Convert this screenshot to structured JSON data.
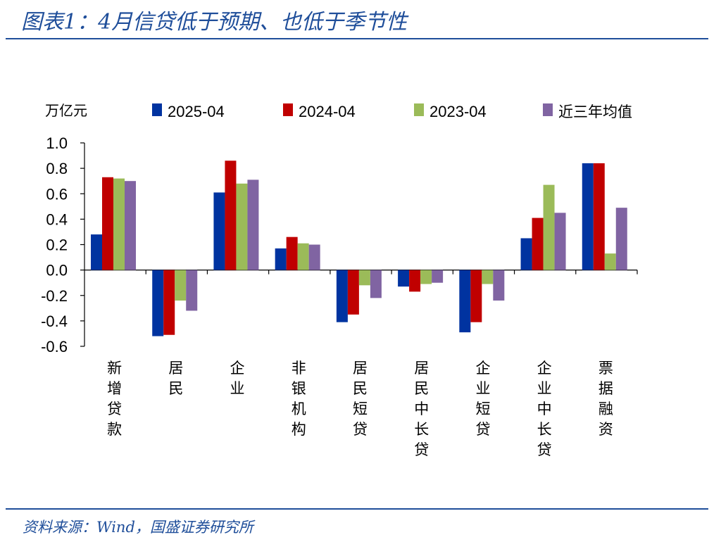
{
  "header": {
    "title": "图表1：4月信贷低于预期、也低于季节性"
  },
  "footer": {
    "source": "资料来源：Wind，国盛证券研究所"
  },
  "chart_data": {
    "type": "bar",
    "unit_label": "万亿元",
    "categories": [
      "新增贷款",
      "居民",
      "企业",
      "非银机构",
      "居民短贷",
      "居民中长贷",
      "企业短贷",
      "企业中长贷",
      "票据融资"
    ],
    "series": [
      {
        "name": "2025-04",
        "color": "#0033a0",
        "values": [
          0.28,
          -0.52,
          0.61,
          0.17,
          -0.41,
          -0.13,
          -0.49,
          0.25,
          0.84
        ]
      },
      {
        "name": "2024-04",
        "color": "#c00000",
        "values": [
          0.73,
          -0.51,
          0.86,
          0.26,
          -0.35,
          -0.17,
          -0.41,
          0.41,
          0.84
        ]
      },
      {
        "name": "2023-04",
        "color": "#9bbb59",
        "values": [
          0.72,
          -0.24,
          0.68,
          0.21,
          -0.12,
          -0.11,
          -0.11,
          0.67,
          0.13
        ]
      },
      {
        "name": "近三年均值",
        "color": "#8064a2",
        "values": [
          0.7,
          -0.32,
          0.71,
          0.2,
          -0.22,
          -0.1,
          -0.24,
          0.45,
          0.49
        ]
      }
    ],
    "yticks": [
      "1.0",
      "0.8",
      "0.6",
      "0.4",
      "0.2",
      "0.0",
      "-0.2",
      "-0.4",
      "-0.6"
    ],
    "ylim": [
      -0.6,
      1.0
    ],
    "grid": false,
    "legend_position": "top"
  }
}
